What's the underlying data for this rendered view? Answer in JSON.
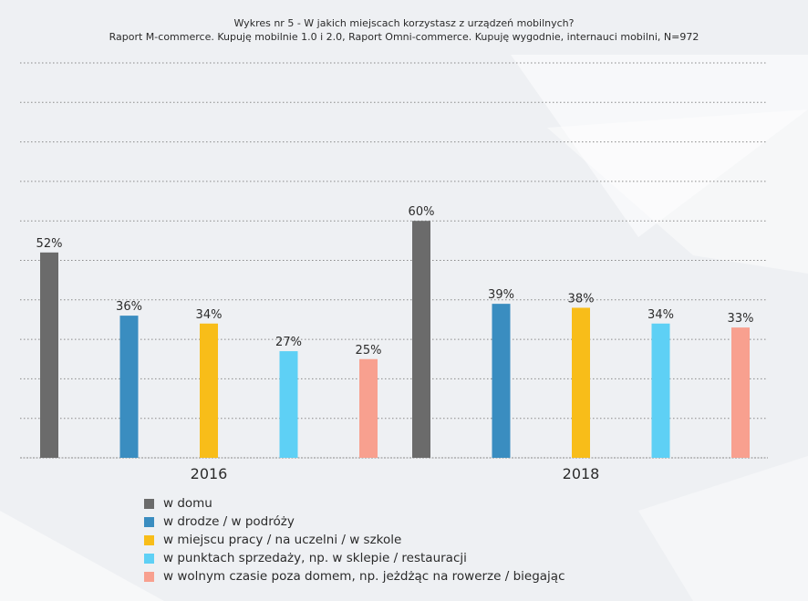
{
  "title_line1": "Wykres nr 5 - W jakich miejscach korzystasz z urządzeń mobilnych?",
  "title_line2": "Raport M-commerce. Kupuję mobilnie 1.0 i 2.0, Raport Omni-commerce. Kupuję wygodnie, internauci mobilni, N=972",
  "chart_data": {
    "type": "bar",
    "categories": [
      "2016",
      "2018"
    ],
    "series": [
      {
        "name": "w domu",
        "color": "#6b6b6b",
        "values": [
          52,
          60
        ],
        "labels": [
          "52%",
          "60%"
        ]
      },
      {
        "name": "w drodze / w podróży",
        "color": "#3a8dc0",
        "values": [
          36,
          39
        ],
        "labels": [
          "36%",
          "39%"
        ]
      },
      {
        "name": "w miejscu pracy / na uczelni / w szkole",
        "color": "#f8bd19",
        "values": [
          34,
          38
        ],
        "labels": [
          "34%",
          "38%"
        ]
      },
      {
        "name": "w punktach sprzedaży, np. w sklepie / restauracji",
        "color": "#5ed0f5",
        "values": [
          27,
          34
        ],
        "labels": [
          "27%",
          "34%"
        ]
      },
      {
        "name": "w wolnym czasie poza domem, np. jeżdżąc na rowerze / biegając",
        "color": "#f8a08f",
        "values": [
          25,
          33
        ],
        "labels": [
          "25%",
          "33%"
        ]
      }
    ],
    "ylim": [
      0,
      100
    ],
    "grid": true,
    "xlabel": "",
    "ylabel": "",
    "legend": "bottom-left"
  }
}
